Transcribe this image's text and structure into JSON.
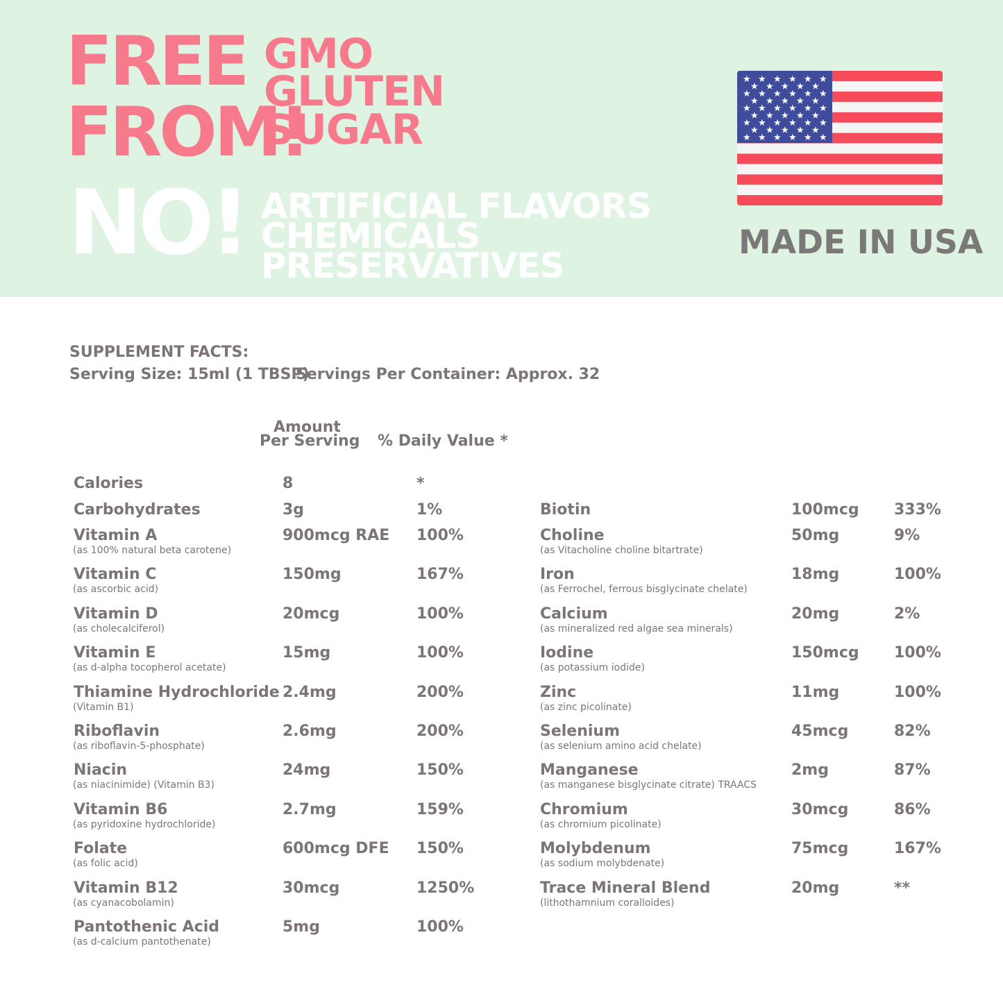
{
  "banner": {
    "free_from": [
      "FREE",
      "FROM!"
    ],
    "free_items": [
      "GMO",
      "GLUTEN",
      "SUGAR"
    ],
    "no_label": "NO!",
    "no_items": [
      "ARTIFICIAL FLAVORS",
      "CHEMICALS",
      "PRESERVATIVES"
    ],
    "made_in": "MADE IN USA",
    "flag_icon": "us-flag-icon",
    "colors": {
      "background": "#dff3e3",
      "accent": "#f67a8b",
      "flag_red": "#f54b5b",
      "flag_blue": "#3f4b9b"
    }
  },
  "facts": {
    "title": "SUPPLEMENT FACTS:",
    "serving_size": "Serving Size: 15ml (1 TBSP)",
    "servings_per_container": "Servings Per Container: Approx. 32",
    "col_amount_1": "Amount",
    "col_amount_2": "Per Serving",
    "col_dv": "% Daily Value *",
    "text_color": "#7c7477",
    "left": [
      {
        "name": "Calories",
        "sub": "",
        "amount": "8",
        "dv": "*"
      },
      {
        "name": "Carbohydrates",
        "sub": "",
        "amount": "3g",
        "dv": "1%"
      },
      {
        "name": "Vitamin A",
        "sub": "(as 100% natural beta carotene)",
        "amount": "900mcg RAE",
        "dv": "100%"
      },
      {
        "name": "Vitamin C",
        "sub": "(as ascorbic acid)",
        "amount": "150mg",
        "dv": "167%"
      },
      {
        "name": "Vitamin D",
        "sub": "(as cholecalciferol)",
        "amount": "20mcg",
        "dv": "100%"
      },
      {
        "name": "Vitamin E",
        "sub": "(as d-alpha tocopherol acetate)",
        "amount": "15mg",
        "dv": "100%"
      },
      {
        "name": "Thiamine Hydrochloride",
        "sub": "(Vitamin B1)",
        "amount": "2.4mg",
        "dv": "200%"
      },
      {
        "name": "Riboflavin",
        "sub": "(as riboflavin-5-phosphate)",
        "amount": "2.6mg",
        "dv": "200%"
      },
      {
        "name": "Niacin",
        "sub": "(as niacinimide) (Vitamin B3)",
        "amount": "24mg",
        "dv": "150%"
      },
      {
        "name": "Vitamin B6",
        "sub": "(as pyridoxine hydrochloride)",
        "amount": "2.7mg",
        "dv": "159%"
      },
      {
        "name": "Folate",
        "sub": "(as folic acid)",
        "amount": "600mcg DFE",
        "dv": "150%"
      },
      {
        "name": "Vitamin B12",
        "sub": "(as cyanacobolamin)",
        "amount": "30mcg",
        "dv": "1250%"
      },
      {
        "name": "Pantothenic Acid",
        "sub": "(as d-calcium pantothenate)",
        "amount": "5mg",
        "dv": "100%"
      }
    ],
    "right": [
      {
        "name": "Biotin",
        "sub": "",
        "amount": "100mcg",
        "dv": "333%"
      },
      {
        "name": "Choline",
        "sub": "(as Vitacholine choline bitartrate)",
        "amount": "50mg",
        "dv": "9%"
      },
      {
        "name": "Iron",
        "sub": "(as Ferrochel, ferrous bisglycinate chelate)",
        "amount": "18mg",
        "dv": "100%"
      },
      {
        "name": "Calcium",
        "sub": "(as mineralized red algae sea minerals)",
        "amount": "20mg",
        "dv": "2%"
      },
      {
        "name": "Iodine",
        "sub": "(as potassium iodide)",
        "amount": "150mcg",
        "dv": "100%"
      },
      {
        "name": "Zinc",
        "sub": "(as zinc picolinate)",
        "amount": "11mg",
        "dv": "100%"
      },
      {
        "name": "Selenium",
        "sub": "(as selenium amino acid chelate)",
        "amount": "45mcg",
        "dv": "82%"
      },
      {
        "name": "Manganese",
        "sub": "(as manganese bisglycinate citrate) TRAACS",
        "amount": "2mg",
        "dv": "87%"
      },
      {
        "name": "Chromium",
        "sub": "(as chromium picolinate)",
        "amount": "30mcg",
        "dv": "86%"
      },
      {
        "name": "Molybdenum",
        "sub": "(as sodium molybdenate)",
        "amount": "75mcg",
        "dv": "167%"
      },
      {
        "name": "Trace Mineral Blend",
        "sub": "(lithothamnium coralloides)",
        "amount": "20mg",
        "dv": "**"
      }
    ]
  }
}
